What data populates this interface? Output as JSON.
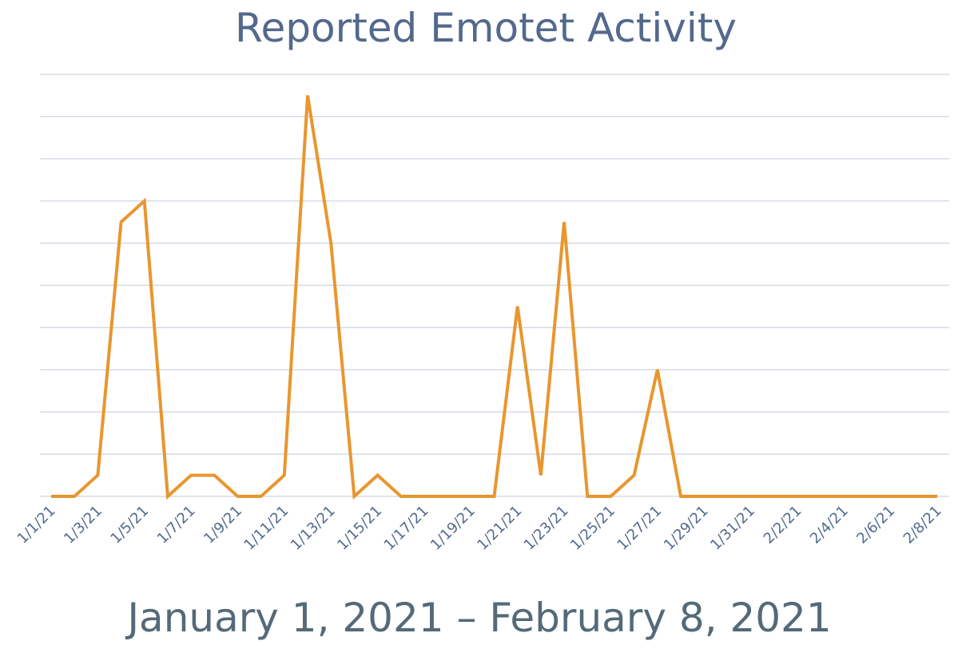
{
  "chart_data": {
    "type": "line",
    "title": "Reported Emotet Activity",
    "subtitle": "January 1, 2021 – February 8, 2021",
    "categories": [
      "1/1/21",
      null,
      "1/3/21",
      null,
      "1/5/21",
      null,
      "1/7/21",
      null,
      "1/9/21",
      null,
      "1/11/21",
      null,
      "1/13/21",
      null,
      "1/15/21",
      null,
      "1/17/21",
      null,
      "1/19/21",
      null,
      "1/21/21",
      null,
      "1/23/21",
      null,
      "1/25/21",
      null,
      "1/27/21",
      null,
      "1/29/21",
      null,
      "1/31/21",
      null,
      "2/2/21",
      null,
      "2/4/21",
      null,
      "2/6/21",
      null,
      "2/8/21"
    ],
    "series": [
      {
        "name": "Reported Emotet Activity",
        "color": "#e8962e",
        "values": [
          0,
          0,
          0.5,
          6.5,
          7,
          0,
          0.5,
          0.5,
          0,
          0,
          0.5,
          9.5,
          6,
          0,
          0.5,
          0,
          0,
          0,
          0,
          0,
          4.5,
          0.5,
          6.5,
          0,
          0,
          0.5,
          3,
          0,
          0,
          0,
          0,
          0,
          0,
          0,
          0,
          0,
          0,
          0,
          0
        ]
      }
    ],
    "ylim": [
      0,
      10
    ],
    "yticks": [
      0,
      1,
      2,
      3,
      4,
      5,
      6,
      7,
      8,
      9,
      10
    ],
    "grid": true
  }
}
